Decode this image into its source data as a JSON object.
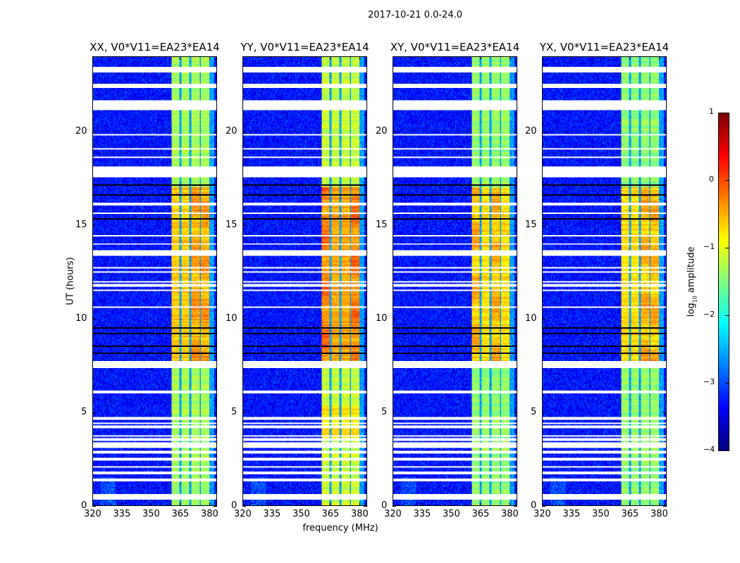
{
  "chart_data": {
    "type": "heatmap",
    "title": "2017-10-21 0.0-24.0",
    "xlabel": "frequency (MHz)",
    "ylabel": "UT (hours)",
    "xlim": [
      320,
      384
    ],
    "ylim": [
      0,
      24
    ],
    "xticks": [
      320,
      335,
      350,
      365,
      380
    ],
    "yticks": [
      0,
      5,
      10,
      15,
      20
    ],
    "colorbar": {
      "label_prefix": "log",
      "label_sub": "10",
      "label_suffix": " amplitude",
      "clim": [
        -4,
        1
      ],
      "ticks": [
        -4,
        -3,
        -2,
        -1,
        0,
        1
      ],
      "tick_labels": [
        "−4",
        "−3",
        "−2",
        "−1",
        "0",
        "1"
      ],
      "colormap": "jet"
    },
    "panels": [
      {
        "title": "XX, V0*V11=EA23*EA14",
        "gain": 0.0,
        "hot_bands": [
          2,
          3
        ]
      },
      {
        "title": "YY, V0*V11=EA23*EA14",
        "gain": 0.15,
        "hot_bands": [
          0,
          3
        ]
      },
      {
        "title": "XY, V0*V11=EA23*EA14",
        "gain": -0.1,
        "hot_bands": [
          0,
          2
        ]
      },
      {
        "title": "YX, V0*V11=EA23*EA14",
        "gain": -0.1,
        "hot_bands": [
          2,
          3
        ]
      }
    ],
    "background_level": -3.3,
    "sub_bands_mhz": [
      [
        360.7,
        365.0
      ],
      [
        366.0,
        370.0
      ],
      [
        371.0,
        375.2
      ],
      [
        376.0,
        380.4
      ]
    ],
    "band_level_quiet": -1.3,
    "band_level_active": -0.6,
    "active_period_ut": [
      7.7,
      17.0
    ],
    "flagged_ut_ranges": [
      [
        23.38,
        23.44
      ],
      [
        23.23,
        23.29
      ],
      [
        22.52,
        22.58
      ],
      [
        22.41,
        22.47
      ],
      [
        21.16,
        21.61
      ],
      [
        19.82,
        19.88
      ],
      [
        19.07,
        19.13
      ],
      [
        18.62,
        18.68
      ],
      [
        18.06,
        18.12
      ],
      [
        17.91,
        17.97
      ],
      [
        17.76,
        17.82
      ],
      [
        17.61,
        17.67
      ],
      [
        16.1,
        16.16
      ],
      [
        15.62,
        15.68
      ],
      [
        14.42,
        14.48
      ],
      [
        13.97,
        14.03
      ],
      [
        13.4,
        13.62
      ],
      [
        12.69,
        12.75
      ],
      [
        12.47,
        12.53
      ],
      [
        11.94,
        12.0
      ],
      [
        11.75,
        11.81
      ],
      [
        11.49,
        11.55
      ],
      [
        10.59,
        10.65
      ],
      [
        7.62,
        7.68
      ],
      [
        7.47,
        7.53
      ],
      [
        7.36,
        7.42
      ],
      [
        6.0,
        6.15
      ],
      [
        4.62,
        4.68
      ],
      [
        4.36,
        4.42
      ],
      [
        4.17,
        4.23
      ],
      [
        3.68,
        3.74
      ],
      [
        3.5,
        3.56
      ],
      [
        3.27,
        3.33
      ],
      [
        3.12,
        3.18
      ],
      [
        2.82,
        2.88
      ],
      [
        2.45,
        2.51
      ],
      [
        2.03,
        2.09
      ],
      [
        1.7,
        1.76
      ],
      [
        1.32,
        1.38
      ],
      [
        0.5,
        0.56
      ],
      [
        0.35,
        0.41
      ]
    ],
    "dark_ut_lines": [
      23.22,
      17.15,
      16.58,
      15.35,
      9.49,
      9.16,
      8.52,
      8.14,
      7.2
    ]
  }
}
